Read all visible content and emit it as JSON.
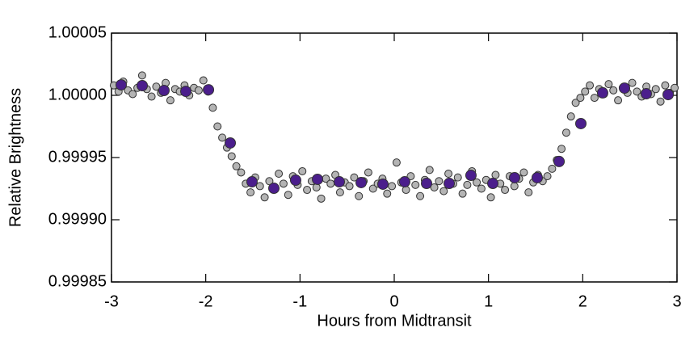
{
  "chart_data": {
    "type": "scatter",
    "x_label": "Hours from Midtransit",
    "y_label": "Relative Brightness",
    "xlim": [
      -3,
      3
    ],
    "xticks": [
      -3,
      -2,
      -1,
      0,
      1,
      2,
      3
    ],
    "ylim": [
      0.99985,
      1.00005
    ],
    "yticks": [
      1.00005,
      {
        "value": 1,
        "label": "1.00000"
      },
      0.99995,
      {
        "value": 0.9999,
        "label": "0.99990"
      },
      0.99985
    ],
    "series": [
      {
        "color": "#b4b4b4",
        "x": [
          -2.975,
          -2.925,
          -2.875,
          -2.825,
          -2.775,
          -2.725,
          -2.675,
          -2.625,
          -2.575,
          -2.525,
          -2.475,
          -2.425,
          -2.375,
          -2.325,
          -2.275,
          -2.225,
          -2.175,
          -2.125,
          -2.075,
          -2.025,
          -1.975,
          -1.925,
          -1.875,
          -1.825,
          -1.775,
          -1.725,
          -1.675,
          -1.625,
          -1.575,
          -1.525,
          -1.475,
          -1.425,
          -1.375,
          -1.325,
          -1.275,
          -1.225,
          -1.175,
          -1.125,
          -1.075,
          -1.025,
          -0.975,
          -0.925,
          -0.875,
          -0.825,
          -0.775,
          -0.725,
          -0.675,
          -0.625,
          -0.575,
          -0.525,
          -0.475,
          -0.425,
          -0.375,
          -0.325,
          -0.275,
          -0.225,
          -0.175,
          -0.125,
          -0.075,
          -0.025,
          0.025,
          0.075,
          0.125,
          0.175,
          0.225,
          0.275,
          0.325,
          0.375,
          0.425,
          0.475,
          0.525,
          0.575,
          0.625,
          0.675,
          0.725,
          0.775,
          0.825,
          0.875,
          0.925,
          0.975,
          1.025,
          1.075,
          1.125,
          1.175,
          1.225,
          1.275,
          1.325,
          1.375,
          1.425,
          1.475,
          1.525,
          1.575,
          1.625,
          1.675,
          1.725,
          1.775,
          1.825,
          1.875,
          1.925,
          1.975,
          2.025,
          2.075,
          2.125,
          2.175,
          2.225,
          2.275,
          2.325,
          2.375,
          2.425,
          2.475,
          2.525,
          2.575,
          2.625,
          2.675,
          2.725,
          2.775,
          2.825,
          2.875,
          2.925,
          2.975
        ],
        "values": [
          1.000008,
          1.000003,
          1.000011,
          1.000004,
          1.000001,
          1.000006,
          1.000016,
          1.000005,
          0.999999,
          1.000007,
          1.000002,
          1.00001,
          0.999996,
          1.000005,
          1.000003,
          1.000008,
          1.0,
          1.000006,
          1.000004,
          1.000012,
          1.000003,
          0.99999,
          0.999975,
          0.999966,
          0.999958,
          0.999951,
          0.999943,
          0.999938,
          0.999929,
          0.999922,
          0.999934,
          0.999927,
          0.999918,
          0.999931,
          0.999925,
          0.999937,
          0.999929,
          0.99992,
          0.999935,
          0.999928,
          0.999939,
          0.999924,
          0.999931,
          0.999926,
          0.999917,
          0.999933,
          0.999929,
          0.999936,
          0.999922,
          0.99993,
          0.999927,
          0.999934,
          0.999919,
          0.999931,
          0.999938,
          0.999925,
          0.999929,
          0.999933,
          0.999921,
          0.999927,
          0.999946,
          0.99993,
          0.999924,
          0.999935,
          0.999928,
          0.999919,
          0.999932,
          0.99994,
          0.999926,
          0.999931,
          0.999923,
          0.999937,
          0.999929,
          0.999934,
          0.999921,
          0.999928,
          0.999939,
          0.99993,
          0.999925,
          0.999932,
          0.999918,
          0.999936,
          0.999929,
          0.999924,
          0.999935,
          0.999927,
          0.999933,
          0.999938,
          0.999922,
          0.99993,
          0.999936,
          0.999931,
          0.999935,
          0.999941,
          0.999948,
          0.999957,
          0.99997,
          0.999983,
          0.999994,
          0.999998,
          1.000003,
          1.000008,
          0.999998,
          1.000005,
          1.000001,
          1.000009,
          1.000004,
          0.999996,
          1.000006,
          1.000002,
          1.00001,
          1.000003,
          0.999999,
          1.000007,
          1.000001,
          1.000005,
          0.999995,
          1.000008,
          1.000002,
          1.000006
        ]
      },
      {
        "color": "#4b1e8c",
        "x": [
          -2.897,
          -2.674,
          -2.443,
          -2.211,
          -1.971,
          -1.74,
          -1.509,
          -1.277,
          -1.046,
          -0.814,
          -0.583,
          -0.351,
          -0.12,
          0.111,
          0.343,
          0.583,
          0.814,
          1.046,
          1.277,
          1.517,
          1.749,
          1.98,
          2.211,
          2.443,
          2.674,
          2.906
        ],
        "values": [
          1.0000084,
          1.0000078,
          1.0000039,
          1.0000032,
          1.0000045,
          0.9999617,
          0.9999305,
          0.9999253,
          0.9999318,
          0.9999325,
          0.9999305,
          0.9999299,
          0.9999286,
          0.9999305,
          0.9999292,
          0.9999292,
          0.9999357,
          0.9999292,
          0.9999338,
          0.9999338,
          0.9999468,
          0.9999773,
          1.000002,
          1.0000058,
          1.0000013,
          1.0000006
        ]
      }
    ]
  }
}
